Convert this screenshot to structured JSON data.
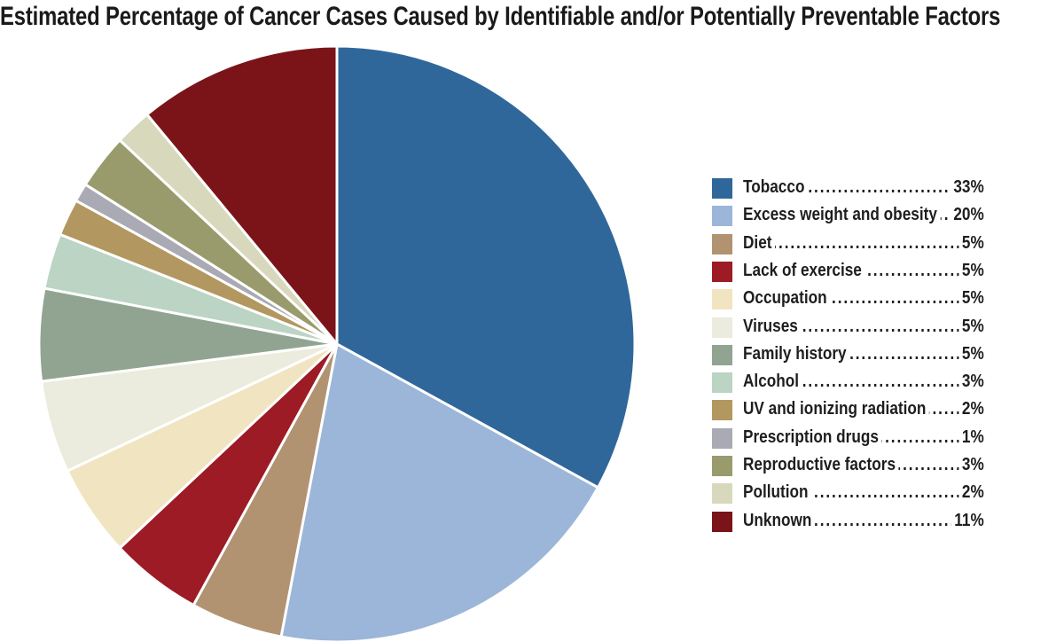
{
  "chart_data": {
    "type": "pie",
    "title": "Estimated Percentage of Cancer Cases Caused by Identifiable and/or Potentially Preventable Factors",
    "legend_placement": "right",
    "slices": [
      {
        "label": "Tobacco",
        "value": 33,
        "value_label": "33%",
        "color": "#30679b"
      },
      {
        "label": "Excess weight and obesity",
        "value": 20,
        "value_label": "20%",
        "color": "#9bb6d8"
      },
      {
        "label": "Diet",
        "value": 5,
        "value_label": "5%",
        "color": "#b19371"
      },
      {
        "label": "Lack of exercise",
        "value": 5,
        "value_label": "5%",
        "color": "#9c1b24"
      },
      {
        "label": "Occupation",
        "value": 5,
        "value_label": "5%",
        "color": "#f1e4c1"
      },
      {
        "label": "Viruses",
        "value": 5,
        "value_label": "5%",
        "color": "#ebecdd"
      },
      {
        "label": "Family history",
        "value": 5,
        "value_label": "5%",
        "color": "#91a491"
      },
      {
        "label": "Alcohol",
        "value": 3,
        "value_label": "3%",
        "color": "#bbd4c4"
      },
      {
        "label": "UV and ionizing radiation",
        "value": 2,
        "value_label": "2%",
        "color": "#b39760"
      },
      {
        "label": "Prescription drugs",
        "value": 1,
        "value_label": "1%",
        "color": "#a9aab3"
      },
      {
        "label": "Reproductive factors",
        "value": 3,
        "value_label": "3%",
        "color": "#999b6c"
      },
      {
        "label": "Pollution",
        "value": 2,
        "value_label": "2%",
        "color": "#d8d8bd"
      },
      {
        "label": "Unknown",
        "value": 11,
        "value_label": "11%",
        "color": "#7b1418"
      }
    ]
  }
}
